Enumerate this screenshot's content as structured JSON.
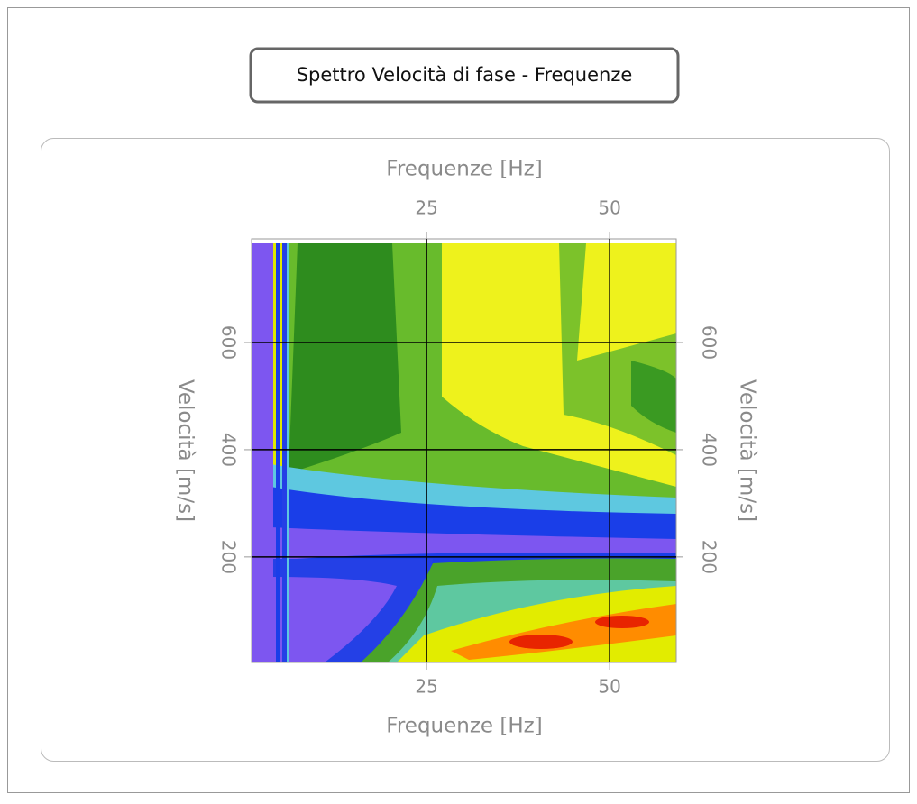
{
  "chart_data": {
    "type": "contour",
    "title": "Spettro Velocità di fase - Frequenze",
    "x_label": "Frequenze [Hz]",
    "y_label": "Velocità [m/s]",
    "xlim": [
      1.1,
      59.1
    ],
    "xticks": [
      25,
      50
    ],
    "ylim": [
      3,
      785
    ],
    "yticks": [
      200,
      400,
      600
    ],
    "grid": true,
    "grid_color": "#000000"
  }
}
